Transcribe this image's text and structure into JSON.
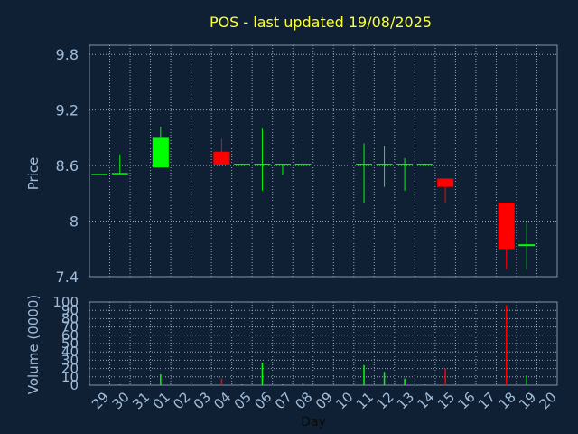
{
  "title": "POS - last updated 19/08/2025",
  "colors": {
    "background": "#0f2035",
    "title": "#ffff33",
    "axis_text": "#a0bcd8",
    "grid": "#b8c8d8",
    "up": "#00ff00",
    "down": "#ff0000"
  },
  "chart_data": [
    {
      "type": "candlestick",
      "ylabel": "Price",
      "ylim": [
        7.4,
        9.9
      ],
      "yticks": [
        "7.4",
        "8",
        "8.6",
        "9.2",
        "9.8"
      ],
      "xticks": [
        "29",
        "30",
        "31",
        "01",
        "02",
        "03",
        "04",
        "05",
        "06",
        "07",
        "08",
        "09",
        "10",
        "11",
        "12",
        "13",
        "14",
        "15",
        "16",
        "17",
        "18",
        "19",
        "20"
      ],
      "grid": true,
      "candles": [
        {
          "day": "29",
          "open": 8.51,
          "high": 8.51,
          "low": 8.51,
          "close": 8.51
        },
        {
          "day": "30",
          "open": 8.51,
          "high": 8.72,
          "low": 8.51,
          "close": 8.52
        },
        {
          "day": "01",
          "open": 8.58,
          "high": 9.02,
          "low": 8.58,
          "close": 8.9
        },
        {
          "day": "04",
          "open": 8.75,
          "high": 8.89,
          "low": 8.6,
          "close": 8.61
        },
        {
          "day": "05",
          "open": 8.61,
          "high": 8.62,
          "low": 8.6,
          "close": 8.62
        },
        {
          "day": "06",
          "open": 8.61,
          "high": 9.0,
          "low": 8.33,
          "close": 8.62
        },
        {
          "day": "07",
          "open": 8.61,
          "high": 8.62,
          "low": 8.5,
          "close": 8.62
        },
        {
          "day": "08",
          "open": 8.61,
          "high": 8.88,
          "low": 8.6,
          "close": 8.62
        },
        {
          "day": "11",
          "open": 8.61,
          "high": 8.84,
          "low": 8.2,
          "close": 8.62
        },
        {
          "day": "12",
          "open": 8.61,
          "high": 8.81,
          "low": 8.37,
          "close": 8.62
        },
        {
          "day": "13",
          "open": 8.61,
          "high": 8.68,
          "low": 8.33,
          "close": 8.62
        },
        {
          "day": "14",
          "open": 8.61,
          "high": 8.62,
          "low": 8.6,
          "close": 8.62
        },
        {
          "day": "15",
          "open": 8.46,
          "high": 8.46,
          "low": 8.2,
          "close": 8.37
        },
        {
          "day": "18",
          "open": 8.2,
          "high": 8.2,
          "low": 7.48,
          "close": 7.7
        },
        {
          "day": "19",
          "open": 7.73,
          "high": 7.98,
          "low": 7.48,
          "close": 7.75
        }
      ]
    },
    {
      "type": "bar",
      "ylabel": "Volume (0000)",
      "xlabel": "Day",
      "ylim": [
        0,
        100
      ],
      "yticks": [
        "0",
        "10",
        "20",
        "30",
        "40",
        "50",
        "60",
        "70",
        "80",
        "90",
        "100"
      ],
      "xticks": [
        "29",
        "30",
        "31",
        "01",
        "02",
        "03",
        "04",
        "05",
        "06",
        "07",
        "08",
        "09",
        "10",
        "11",
        "12",
        "13",
        "14",
        "15",
        "16",
        "17",
        "18",
        "19",
        "20"
      ],
      "grid": true,
      "bars": [
        {
          "day": "29",
          "value": 0.5,
          "direction": "up"
        },
        {
          "day": "30",
          "value": 1,
          "direction": "up"
        },
        {
          "day": "01",
          "value": 13,
          "direction": "up"
        },
        {
          "day": "04",
          "value": 8,
          "direction": "down"
        },
        {
          "day": "05",
          "value": 1,
          "direction": "up"
        },
        {
          "day": "06",
          "value": 27,
          "direction": "up"
        },
        {
          "day": "07",
          "value": 1,
          "direction": "up"
        },
        {
          "day": "08",
          "value": 2,
          "direction": "up"
        },
        {
          "day": "11",
          "value": 24,
          "direction": "up"
        },
        {
          "day": "12",
          "value": 16,
          "direction": "up"
        },
        {
          "day": "13",
          "value": 8,
          "direction": "up"
        },
        {
          "day": "14",
          "value": 1,
          "direction": "up"
        },
        {
          "day": "15",
          "value": 20,
          "direction": "down"
        },
        {
          "day": "18",
          "value": 96,
          "direction": "down"
        },
        {
          "day": "19",
          "value": 12,
          "direction": "up"
        }
      ]
    }
  ]
}
